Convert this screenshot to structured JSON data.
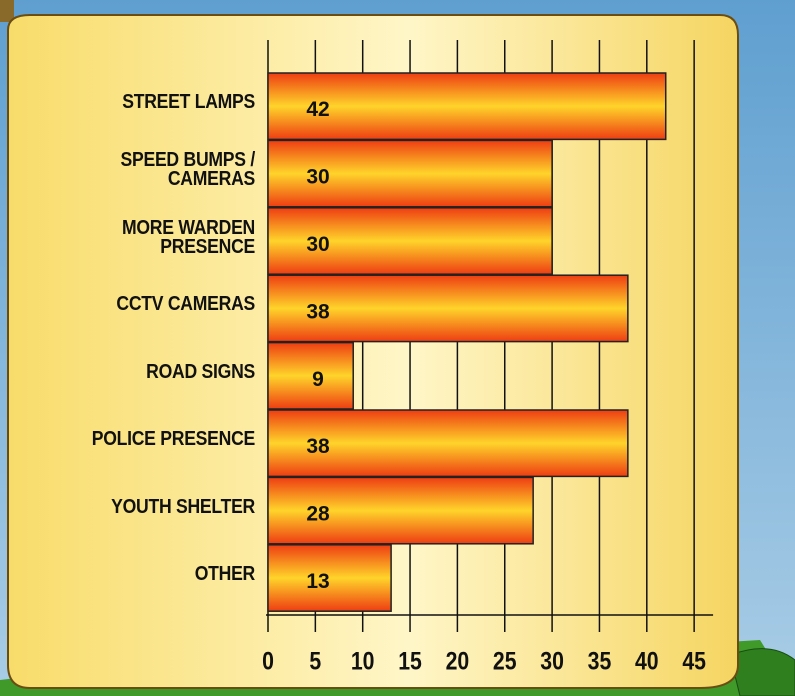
{
  "chart_data": {
    "type": "bar",
    "orientation": "horizontal",
    "categories": [
      "STREET LAMPS",
      "SPEED BUMPS /\nCAMERAS",
      "MORE WARDEN\nPRESENCE",
      "CCTV CAMERAS",
      "ROAD SIGNS",
      "POLICE PRESENCE",
      "YOUTH SHELTER",
      "OTHER"
    ],
    "values": [
      42,
      30,
      30,
      38,
      9,
      38,
      28,
      13
    ],
    "color": "#f5641a",
    "xlim": [
      0,
      47
    ],
    "xticks": [
      0,
      5,
      10,
      15,
      20,
      25,
      30,
      35,
      40,
      45
    ],
    "grid": true
  }
}
